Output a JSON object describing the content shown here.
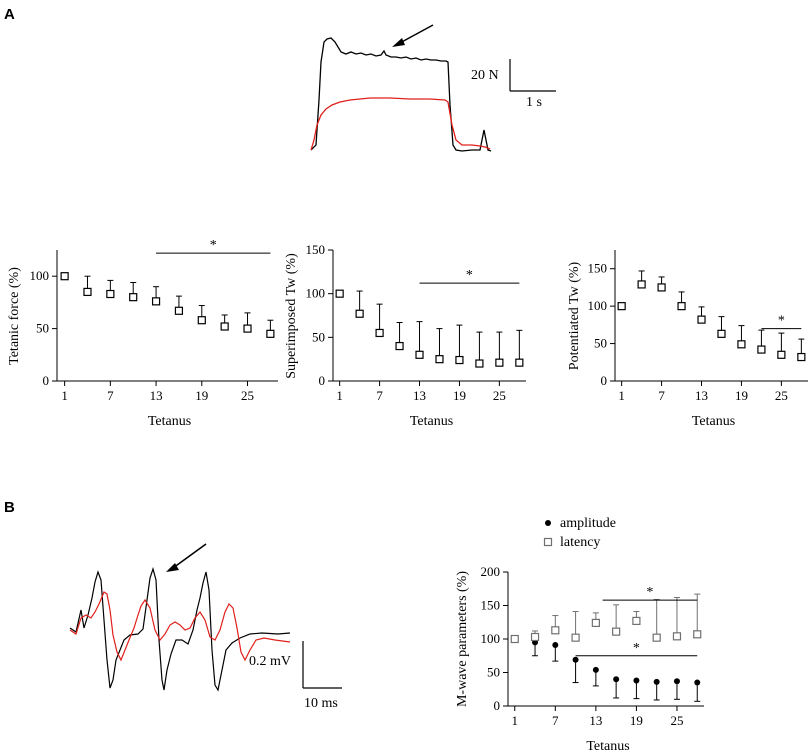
{
  "panels": {
    "a": "A",
    "b": "B"
  },
  "scalebars": {
    "top_force": "20 N",
    "top_time": "1 s",
    "b_volt": "0.2 mV",
    "b_time": "10 ms"
  },
  "colors": {
    "trace_black": "#000000",
    "trace_red": "#e0201b",
    "error_gray": "#707070"
  },
  "chart_data": [
    {
      "id": "tetanic",
      "type": "scatter",
      "xlabel": "Tetanus",
      "ylabel": "Tetanic force (%)",
      "xticks": [
        1,
        7,
        13,
        19,
        25
      ],
      "yticks": [
        0,
        50,
        100
      ],
      "xlim": [
        0,
        29
      ],
      "ylim": [
        0,
        125
      ],
      "x": [
        1,
        4,
        7,
        10,
        13,
        16,
        19,
        22,
        25,
        28
      ],
      "y": [
        100,
        85,
        83,
        80,
        76,
        67,
        58,
        52,
        50,
        45
      ],
      "err": [
        0,
        15,
        13,
        14,
        14,
        14,
        14,
        11,
        15,
        13
      ],
      "significance": {
        "label": "*",
        "x_from": 13,
        "x_to": 28,
        "y": 122
      }
    },
    {
      "id": "superimposed",
      "type": "scatter",
      "xlabel": "Tetanus",
      "ylabel": "Superimposed Tw (%)",
      "xticks": [
        1,
        7,
        13,
        19,
        25
      ],
      "yticks": [
        0,
        50,
        100,
        150
      ],
      "xlim": [
        0,
        29
      ],
      "ylim": [
        0,
        150
      ],
      "x": [
        1,
        4,
        7,
        10,
        13,
        16,
        19,
        22,
        25,
        28
      ],
      "y": [
        100,
        77,
        55,
        40,
        30,
        25,
        24,
        20,
        21,
        21
      ],
      "err": [
        0,
        26,
        33,
        27,
        38,
        35,
        40,
        36,
        35,
        37
      ],
      "significance": {
        "label": "*",
        "x_from": 13,
        "x_to": 28,
        "y": 112
      }
    },
    {
      "id": "potentiated",
      "type": "scatter",
      "xlabel": "Tetanus",
      "ylabel": "Potentiated Tw (%)",
      "xticks": [
        1,
        7,
        13,
        19,
        25
      ],
      "yticks": [
        0,
        50,
        100,
        150
      ],
      "xlim": [
        0,
        29
      ],
      "ylim": [
        0,
        175
      ],
      "x": [
        1,
        4,
        7,
        10,
        13,
        16,
        19,
        22,
        25,
        28
      ],
      "y": [
        100,
        129,
        125,
        100,
        82,
        63,
        49,
        42,
        35,
        32
      ],
      "err": [
        0,
        18,
        14,
        19,
        17,
        23,
        25,
        26,
        29,
        24
      ],
      "significance": {
        "label": "*",
        "x_from": 22,
        "x_to": 28,
        "y": 70
      }
    },
    {
      "id": "mwave",
      "type": "scatter",
      "xlabel": "Tetanus",
      "ylabel": "M-wave parameters (%)",
      "xticks": [
        1,
        7,
        13,
        19,
        25
      ],
      "yticks": [
        0,
        50,
        100,
        150,
        200
      ],
      "xlim": [
        0,
        29
      ],
      "ylim": [
        0,
        200
      ],
      "series": [
        {
          "name": "amplitude",
          "marker": "filled-circle",
          "x": [
            1,
            4,
            7,
            10,
            13,
            16,
            19,
            22,
            25,
            28
          ],
          "y": [
            100,
            95,
            91,
            69,
            54,
            40,
            38,
            36,
            37,
            35
          ],
          "err": [
            0,
            20,
            24,
            34,
            24,
            28,
            27,
            27,
            27,
            28
          ],
          "err_dir": "down"
        },
        {
          "name": "latency",
          "marker": "open-square",
          "x": [
            1,
            4,
            7,
            10,
            13,
            16,
            19,
            22,
            25,
            28
          ],
          "y": [
            100,
            103,
            113,
            102,
            124,
            111,
            127,
            102,
            104,
            107
          ],
          "err": [
            0,
            9,
            22,
            39,
            15,
            40,
            14,
            57,
            58,
            60
          ],
          "err_dir": "up"
        }
      ],
      "significance": [
        {
          "label": "*",
          "x_from": 14,
          "x_to": 28,
          "y": 158
        },
        {
          "label": "*",
          "x_from": 10,
          "x_to": 28,
          "y": 75
        }
      ]
    }
  ]
}
